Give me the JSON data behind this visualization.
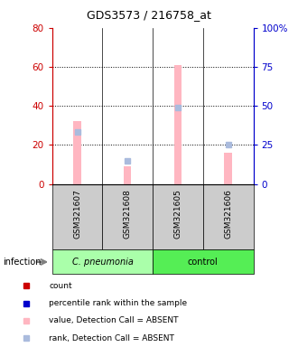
{
  "title": "GDS3573 / 216758_at",
  "samples": [
    "GSM321607",
    "GSM321608",
    "GSM321605",
    "GSM321606"
  ],
  "group_labels": [
    "C. pneumonia",
    "control"
  ],
  "group_color_light": "#AAFFAA",
  "group_color_dark": "#55EE55",
  "sample_box_color": "#CCCCCC",
  "bar_pink": "#FFB6C1",
  "rank_blue_abs": "#AABBDD",
  "values_absent": [
    32,
    9,
    61,
    16
  ],
  "ranks_absent": [
    33,
    15,
    49,
    25
  ],
  "ylim_left": [
    0,
    80
  ],
  "ylim_right": [
    0,
    100
  ],
  "yticks_left": [
    0,
    20,
    40,
    60,
    80
  ],
  "ytick_labels_right": [
    "0",
    "25",
    "50",
    "75",
    "100%"
  ],
  "left_axis_color": "#CC0000",
  "right_axis_color": "#0000CC",
  "legend_items": [
    {
      "color": "#CC0000",
      "marker": "s",
      "label": "count"
    },
    {
      "color": "#0000CC",
      "marker": "s",
      "label": "percentile rank within the sample"
    },
    {
      "color": "#FFB6C1",
      "marker": "s",
      "label": "value, Detection Call = ABSENT"
    },
    {
      "color": "#AABBDD",
      "marker": "s",
      "label": "rank, Detection Call = ABSENT"
    }
  ]
}
